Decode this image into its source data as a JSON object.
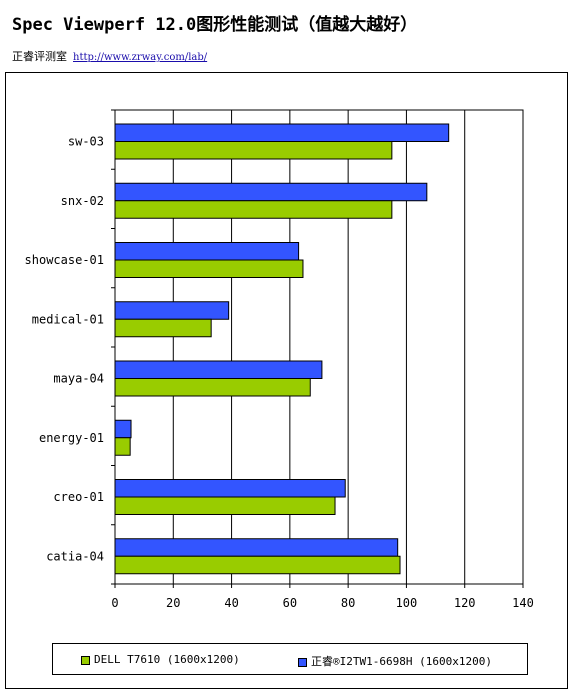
{
  "header": {
    "title": "Spec Viewperf 12.0图形性能测试（值越大越好）",
    "source_label": "正睿评测室",
    "source_url": "http://www.zrway.com/lab/"
  },
  "chart_data": {
    "type": "bar",
    "orientation": "horizontal",
    "title": "",
    "xlabel": "",
    "ylabel": "",
    "xlim": [
      0,
      140
    ],
    "xticks": [
      "0",
      "20",
      "40",
      "60",
      "80",
      "100",
      "120",
      "140"
    ],
    "grid": true,
    "legend_position": "bottom",
    "categories": [
      "sw-03",
      "snx-02",
      "showcase-01",
      "medical-01",
      "maya-04",
      "energy-01",
      "creo-01",
      "catia-04"
    ],
    "series": [
      {
        "name": "正睿®I2TW1-6698H (1600x1200)",
        "color": "#3355ff",
        "values": [
          114.5,
          107,
          63,
          39,
          71,
          5.5,
          79,
          97
        ]
      },
      {
        "name": "DELL T7610 (1600x1200)",
        "color": "#99cc00",
        "values": [
          95,
          95,
          64.5,
          33,
          67,
          5.2,
          75.5,
          97.8
        ]
      }
    ]
  }
}
